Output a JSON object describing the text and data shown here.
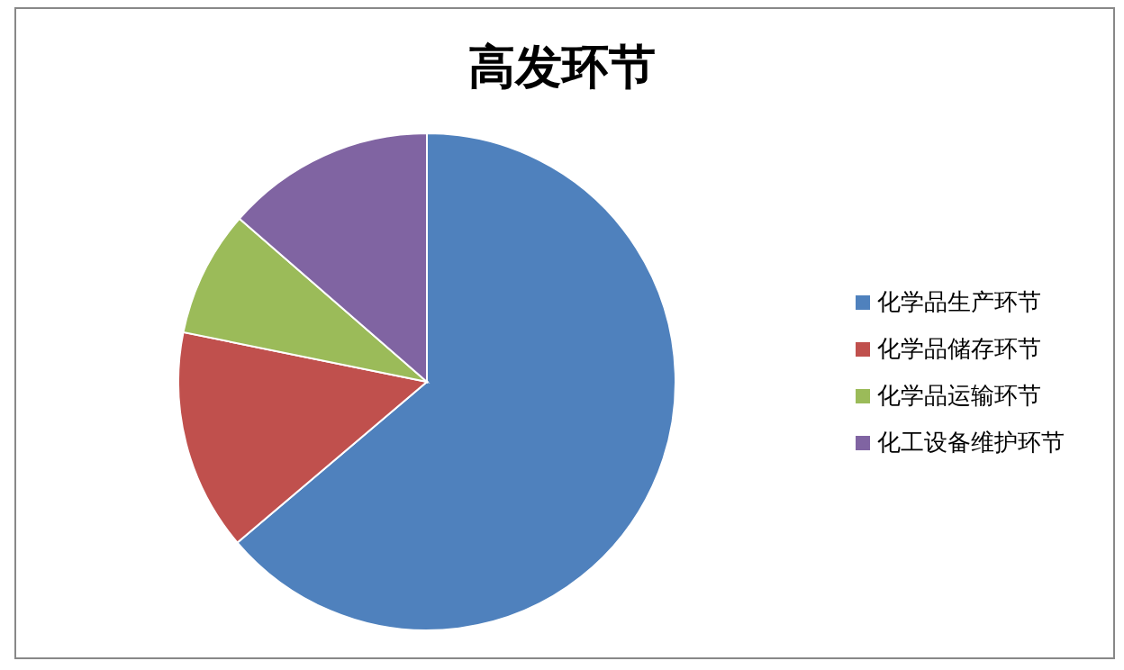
{
  "chart_data": {
    "type": "pie",
    "title": "高发环节",
    "categories": [
      "化学品生产环节",
      "化学品储存环节",
      "化学品运输环节",
      "化工设备维护环节"
    ],
    "values": [
      63.8,
      14.4,
      8.2,
      13.6
    ],
    "colors": [
      "#4f81bd",
      "#c0504d",
      "#9bbb59",
      "#8064a2"
    ],
    "legend": "right"
  }
}
